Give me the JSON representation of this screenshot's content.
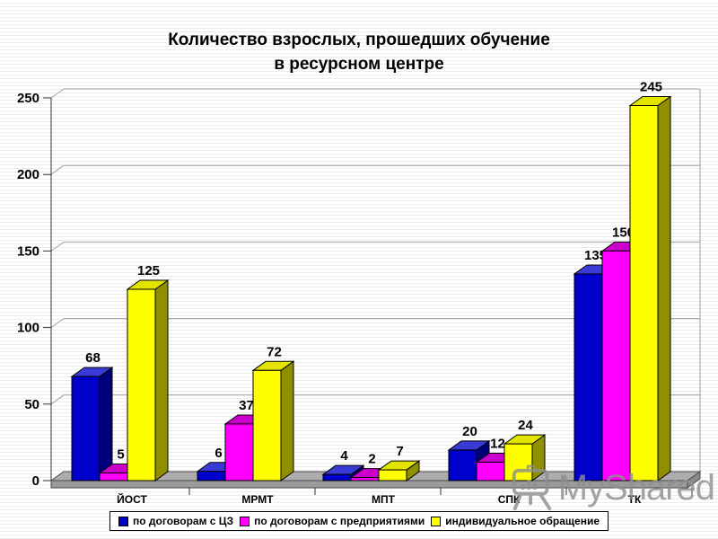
{
  "slide": {
    "title_line1": "Количество взрослых, прошедших обучение",
    "title_line2": "в ресурсном центре"
  },
  "watermark": {
    "text": "MyShared",
    "icon": "easel-presentation-icon"
  },
  "chart_data": {
    "type": "bar",
    "style": "3d-column",
    "title": "Количество взрослых, прошедших обучение в ресурсном центре",
    "categories": [
      "ЙОСТ",
      "МРМТ",
      "МПТ",
      "СПК",
      "ТК"
    ],
    "series": [
      {
        "name": "по договорам с ЦЗ",
        "color": "#0000CC",
        "values": [
          68,
          6,
          4,
          20,
          135
        ]
      },
      {
        "name": "по договорам с предприятиями",
        "color": "#FF00FF",
        "values": [
          5,
          37,
          2,
          12,
          150
        ]
      },
      {
        "name": "индивидуальное обращение",
        "color": "#FFFF00",
        "values": [
          125,
          72,
          7,
          24,
          245
        ]
      }
    ],
    "xlabel": "",
    "ylabel": "",
    "ylim": [
      0,
      250
    ],
    "yticks": [
      0,
      50,
      100,
      150,
      200,
      250
    ],
    "grid": true,
    "legend_position": "bottom",
    "floor_color": "#ADADAD",
    "background": "striped-white"
  }
}
